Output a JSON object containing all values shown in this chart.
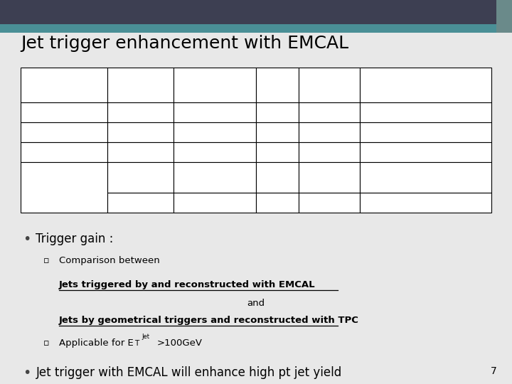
{
  "title": "Jet trigger enhancement with EMCAL",
  "header_bar_color": "#3d3f52",
  "teal_bar_color": "#4a8f96",
  "bg_color": "#e8e8e8",
  "bullet1": "Trigger gain :",
  "sub_bullet1": "Comparison between",
  "underline1": "Jets triggered by and reconstructed with EMCAL",
  "middle_and": "and",
  "underline2": "Jets by geometrical triggers and reconstructed with TPC",
  "sub_bullet2_prefix": "Applicable for E",
  "sub_bullet2_suffix": ">100GeV",
  "bullet2": "Jet trigger with EMCAL will enhance high pt jet yield",
  "page_num": "7"
}
